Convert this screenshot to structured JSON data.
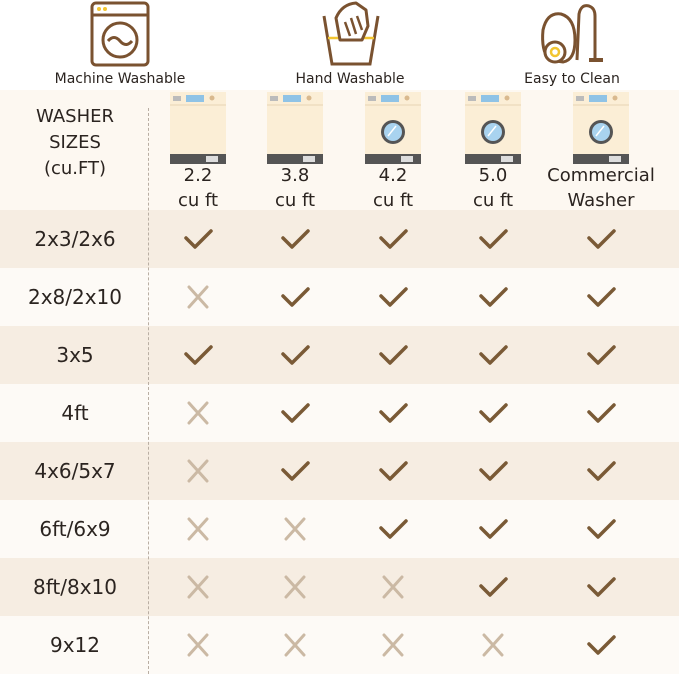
{
  "features": [
    {
      "label": "Machine Washable",
      "icon": "washing-machine-icon"
    },
    {
      "label": "Hand Washable",
      "icon": "hand-wash-icon"
    },
    {
      "label": "Easy to Clean",
      "icon": "vacuum-cleaner-icon"
    }
  ],
  "table": {
    "corner_title": [
      "WASHER",
      "SIZES",
      "(cu.FT)"
    ],
    "columns": [
      {
        "line1": "2.2",
        "line2": "cu ft",
        "type": "top-load"
      },
      {
        "line1": "3.8",
        "line2": "cu ft",
        "type": "top-load"
      },
      {
        "line1": "4.2",
        "line2": "cu ft",
        "type": "front-load"
      },
      {
        "line1": "5.0",
        "line2": "cu ft",
        "type": "front-load"
      },
      {
        "line1": "Commercial",
        "line2": "Washer",
        "type": "front-load"
      }
    ],
    "rows": [
      {
        "size": "2x3/2x6",
        "fits": [
          true,
          true,
          true,
          true,
          true
        ]
      },
      {
        "size": "2x8/2x10",
        "fits": [
          false,
          true,
          true,
          true,
          true
        ]
      },
      {
        "size": "3x5",
        "fits": [
          true,
          true,
          true,
          true,
          true
        ]
      },
      {
        "size": "4ft",
        "fits": [
          false,
          true,
          true,
          true,
          true
        ]
      },
      {
        "size": "4x6/5x7",
        "fits": [
          false,
          true,
          true,
          true,
          true
        ]
      },
      {
        "size": "6ft/6x9",
        "fits": [
          false,
          false,
          true,
          true,
          true
        ]
      },
      {
        "size": "8ft/8x10",
        "fits": [
          false,
          false,
          false,
          true,
          true
        ]
      },
      {
        "size": "9x12",
        "fits": [
          false,
          false,
          false,
          false,
          true
        ]
      }
    ]
  },
  "colors": {
    "check": "#7a5a36",
    "cross": "#cbb9a4",
    "icon_brown": "#7a5230",
    "icon_yellow": "#f2c531",
    "row_dark": "#f6ede2",
    "row_light": "#fdfaf6"
  }
}
